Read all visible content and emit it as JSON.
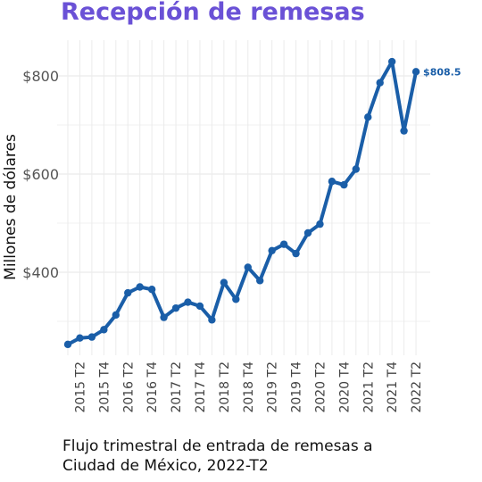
{
  "colors": {
    "title": "#6a51d6",
    "line": "#1a5ea8",
    "grid": "#ebebeb"
  },
  "chart_data": {
    "type": "line",
    "title": "Recepción de remesas",
    "caption_lines": [
      "Flujo trimestral de entrada de remesas a",
      "Ciudad de México, 2022-T2"
    ],
    "ylabel": "Millones de dólares",
    "xlabel": "",
    "ylim": [
      240,
      870
    ],
    "y_ticks": [
      400,
      600,
      800
    ],
    "y_tick_labels": [
      "$400",
      "$600",
      "$800"
    ],
    "grid": true,
    "x": [
      "2015 T1",
      "2015 T2",
      "2015 T3",
      "2015 T4",
      "2016 T1",
      "2016 T2",
      "2016 T3",
      "2016 T4",
      "2017 T1",
      "2017 T2",
      "2017 T3",
      "2017 T4",
      "2018 T1",
      "2018 T2",
      "2018 T3",
      "2018 T4",
      "2019 T1",
      "2019 T2",
      "2019 T3",
      "2019 T4",
      "2020 T1",
      "2020 T2",
      "2020 T3",
      "2020 T4",
      "2021 T1",
      "2021 T2",
      "2021 T3",
      "2021 T4",
      "2022 T1",
      "2022 T2"
    ],
    "x_tick_labels": [
      "2015 T2",
      "2015 T4",
      "2016 T2",
      "2016 T4",
      "2017 T2",
      "2017 T4",
      "2018 T2",
      "2018 T4",
      "2019 T2",
      "2019 T4",
      "2020 T2",
      "2020 T4",
      "2021 T2",
      "2021 T4",
      "2022 T2"
    ],
    "series": [
      {
        "values": [
          253,
          266,
          268,
          283,
          313,
          358,
          370,
          365,
          308,
          327,
          339,
          331,
          303,
          379,
          345,
          410,
          383,
          444,
          457,
          438,
          480,
          498,
          585,
          578,
          610,
          716,
          786,
          829,
          688,
          808.5
        ],
        "end_label": "$808.5"
      }
    ]
  }
}
